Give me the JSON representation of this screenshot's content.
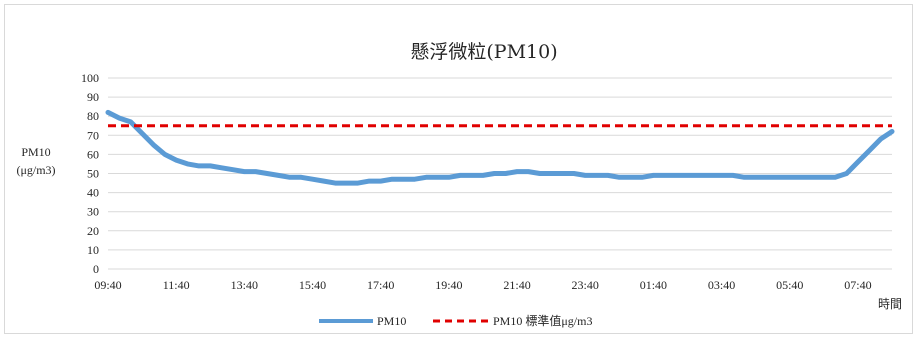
{
  "chart_data": {
    "type": "line",
    "title": "懸浮微粒(PM10)",
    "ylabel_lines": [
      "PM10",
      "(μg/m3)"
    ],
    "xlabel": "時間",
    "ylim": [
      0,
      100
    ],
    "yticks": [
      0,
      10,
      20,
      30,
      40,
      50,
      60,
      70,
      80,
      90,
      100
    ],
    "xticks": [
      "09:40",
      "11:40",
      "13:40",
      "15:40",
      "17:40",
      "19:40",
      "21:40",
      "23:40",
      "01:40",
      "03:40",
      "05:40",
      "07:40"
    ],
    "x_start": "09:40",
    "x_end": "08:40",
    "grid": true,
    "legend_position": "bottom",
    "series": [
      {
        "name": "PM10",
        "color": "#5b9bd5",
        "times": [
          "09:40",
          "10:00",
          "10:20",
          "10:40",
          "11:00",
          "11:20",
          "11:40",
          "12:00",
          "12:20",
          "12:40",
          "13:00",
          "13:20",
          "13:40",
          "14:00",
          "14:20",
          "14:40",
          "15:00",
          "15:20",
          "15:40",
          "16:00",
          "16:20",
          "16:40",
          "17:00",
          "17:20",
          "17:40",
          "18:00",
          "18:20",
          "18:40",
          "19:00",
          "19:20",
          "19:40",
          "20:00",
          "20:20",
          "20:40",
          "21:00",
          "21:20",
          "21:40",
          "22:00",
          "22:20",
          "22:40",
          "23:00",
          "23:20",
          "23:40",
          "00:00",
          "00:20",
          "00:40",
          "01:00",
          "01:20",
          "01:40",
          "02:00",
          "02:20",
          "02:40",
          "03:00",
          "03:20",
          "03:40",
          "04:00",
          "04:20",
          "04:40",
          "05:00",
          "05:20",
          "05:40",
          "06:00",
          "06:20",
          "06:40",
          "07:00",
          "07:20",
          "07:40",
          "08:00",
          "08:20",
          "08:40"
        ],
        "values": [
          82,
          79,
          77,
          71,
          65,
          60,
          57,
          55,
          54,
          54,
          53,
          52,
          51,
          51,
          50,
          49,
          48,
          48,
          47,
          46,
          45,
          45,
          45,
          46,
          46,
          47,
          47,
          47,
          48,
          48,
          48,
          49,
          49,
          49,
          50,
          50,
          51,
          51,
          50,
          50,
          50,
          50,
          49,
          49,
          49,
          48,
          48,
          48,
          49,
          49,
          49,
          49,
          49,
          49,
          49,
          49,
          48,
          48,
          48,
          48,
          48,
          48,
          48,
          48,
          48,
          50,
          56,
          62,
          68,
          72
        ]
      },
      {
        "name": "PM10 標準值μg/m3",
        "color": "#e00000",
        "style": "dashed",
        "times": [
          "09:40",
          "08:40"
        ],
        "values": [
          75,
          75
        ]
      }
    ]
  }
}
